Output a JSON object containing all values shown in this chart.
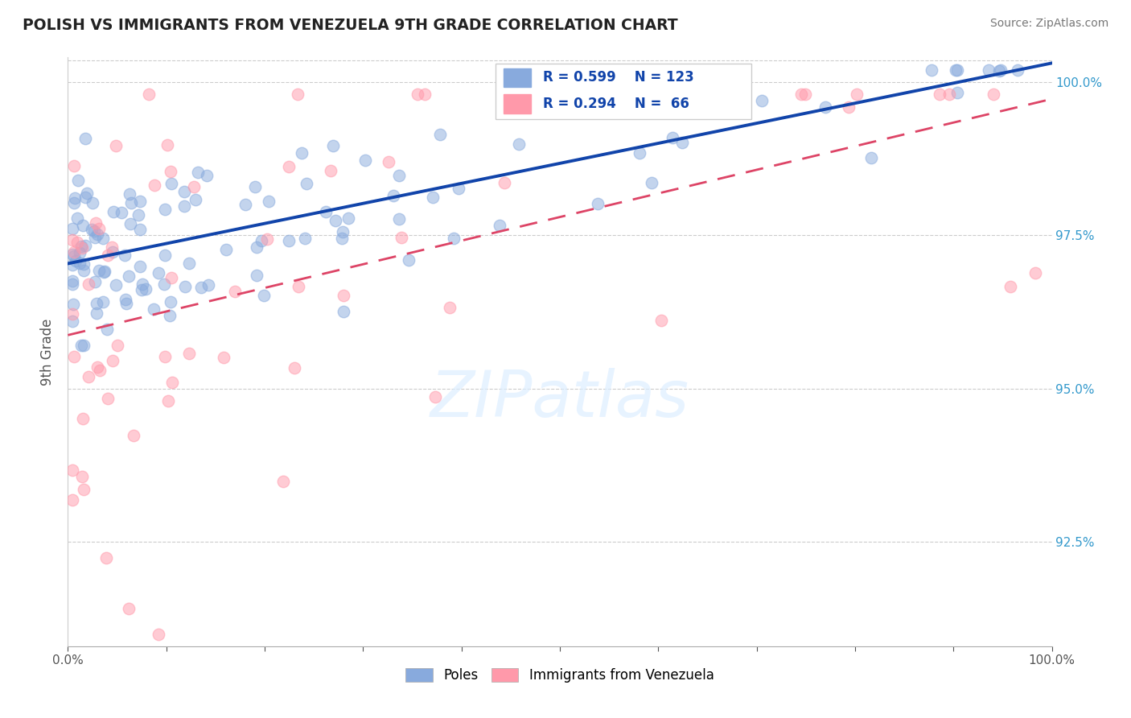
{
  "title": "POLISH VS IMMIGRANTS FROM VENEZUELA 9TH GRADE CORRELATION CHART",
  "source": "Source: ZipAtlas.com",
  "ylabel": "9th Grade",
  "xmin": 0.0,
  "xmax": 1.0,
  "ymin": 0.908,
  "ymax": 1.004,
  "yticks": [
    0.925,
    0.95,
    0.975,
    1.0
  ],
  "ytick_labels": [
    "92.5%",
    "95.0%",
    "97.5%",
    "100.0%"
  ],
  "legend_blue_r": "R = 0.599",
  "legend_blue_n": "N = 123",
  "legend_pink_r": "R = 0.294",
  "legend_pink_n": "N =  66",
  "blue_color": "#88AADD",
  "pink_color": "#FF99AA",
  "blue_line_color": "#1144AA",
  "pink_line_color": "#DD4466",
  "legend_r_color": "#1144AA",
  "legend_n_color": "#1144AA",
  "background_color": "#FFFFFF",
  "watermark_text": "ZIPatlas",
  "blue_line_start_y": 0.97,
  "blue_line_end_y": 1.001,
  "pink_line_start_y": 0.958,
  "pink_line_end_y": 0.992
}
